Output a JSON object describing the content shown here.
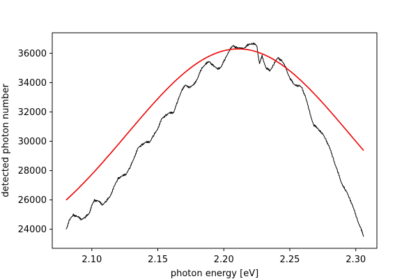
{
  "chart_data": {
    "type": "line",
    "title": "",
    "xlabel": "photon energy [eV]",
    "ylabel": "detected photon number",
    "xlim": [
      2.07,
      2.316
    ],
    "ylim": [
      22700,
      37400
    ],
    "grid": false,
    "x_ticks": [
      2.1,
      2.15,
      2.2,
      2.25,
      2.3
    ],
    "x_tick_labels": [
      "2.10",
      "2.15",
      "2.20",
      "2.25",
      "2.30"
    ],
    "y_ticks": [
      24000,
      26000,
      28000,
      30000,
      32000,
      34000,
      36000
    ],
    "y_tick_labels": [
      "24000",
      "26000",
      "28000",
      "30000",
      "32000",
      "34000",
      "36000"
    ],
    "series": [
      {
        "color": "#000000",
        "style": "measured",
        "points": [
          [
            2.0805,
            24000
          ],
          [
            2.083,
            24600
          ],
          [
            2.086,
            25000
          ],
          [
            2.089,
            24850
          ],
          [
            2.092,
            24700
          ],
          [
            2.095,
            24800
          ],
          [
            2.098,
            25100
          ],
          [
            2.1,
            25600
          ],
          [
            2.102,
            26000
          ],
          [
            2.105,
            25900
          ],
          [
            2.108,
            25700
          ],
          [
            2.111,
            25900
          ],
          [
            2.114,
            26300
          ],
          [
            2.117,
            26900
          ],
          [
            2.12,
            27500
          ],
          [
            2.123,
            27600
          ],
          [
            2.126,
            27800
          ],
          [
            2.129,
            28200
          ],
          [
            2.132,
            28900
          ],
          [
            2.135,
            29500
          ],
          [
            2.138,
            29800
          ],
          [
            2.141,
            29900
          ],
          [
            2.144,
            30000
          ],
          [
            2.147,
            30400
          ],
          [
            2.15,
            30900
          ],
          [
            2.153,
            31500
          ],
          [
            2.156,
            31800
          ],
          [
            2.159,
            31900
          ],
          [
            2.162,
            32000
          ],
          [
            2.165,
            32700
          ],
          [
            2.168,
            33500
          ],
          [
            2.171,
            33800
          ],
          [
            2.174,
            33700
          ],
          [
            2.177,
            33800
          ],
          [
            2.18,
            34300
          ],
          [
            2.183,
            34900
          ],
          [
            2.186,
            35300
          ],
          [
            2.189,
            35400
          ],
          [
            2.192,
            35200
          ],
          [
            2.195,
            34900
          ],
          [
            2.198,
            35100
          ],
          [
            2.201,
            35600
          ],
          [
            2.204,
            36200
          ],
          [
            2.207,
            36500
          ],
          [
            2.21,
            36400
          ],
          [
            2.213,
            36300
          ],
          [
            2.216,
            36400
          ],
          [
            2.219,
            36600
          ],
          [
            2.222,
            36700
          ],
          [
            2.225,
            36500
          ],
          [
            2.227,
            35300
          ],
          [
            2.229,
            35800
          ],
          [
            2.232,
            35000
          ],
          [
            2.235,
            34800
          ],
          [
            2.238,
            35300
          ],
          [
            2.241,
            35700
          ],
          [
            2.244,
            35500
          ],
          [
            2.247,
            35000
          ],
          [
            2.25,
            34300
          ],
          [
            2.253,
            33900
          ],
          [
            2.256,
            33800
          ],
          [
            2.259,
            33700
          ],
          [
            2.262,
            33000
          ],
          [
            2.265,
            32000
          ],
          [
            2.268,
            31100
          ],
          [
            2.271,
            30900
          ],
          [
            2.274,
            30600
          ],
          [
            2.277,
            30200
          ],
          [
            2.28,
            29600
          ],
          [
            2.283,
            28800
          ],
          [
            2.286,
            28000
          ],
          [
            2.289,
            27200
          ],
          [
            2.292,
            26700
          ],
          [
            2.295,
            26200
          ],
          [
            2.298,
            25500
          ],
          [
            2.301,
            24700
          ],
          [
            2.304,
            24000
          ],
          [
            2.306,
            23500
          ]
        ]
      },
      {
        "color": "#ee0000",
        "style": "gaussian-fit",
        "fit": {
          "baseline": 21500,
          "amplitude": 14800,
          "center": 2.211,
          "sigma": 0.0845,
          "x_range": [
            2.0805,
            2.306
          ]
        }
      }
    ]
  }
}
